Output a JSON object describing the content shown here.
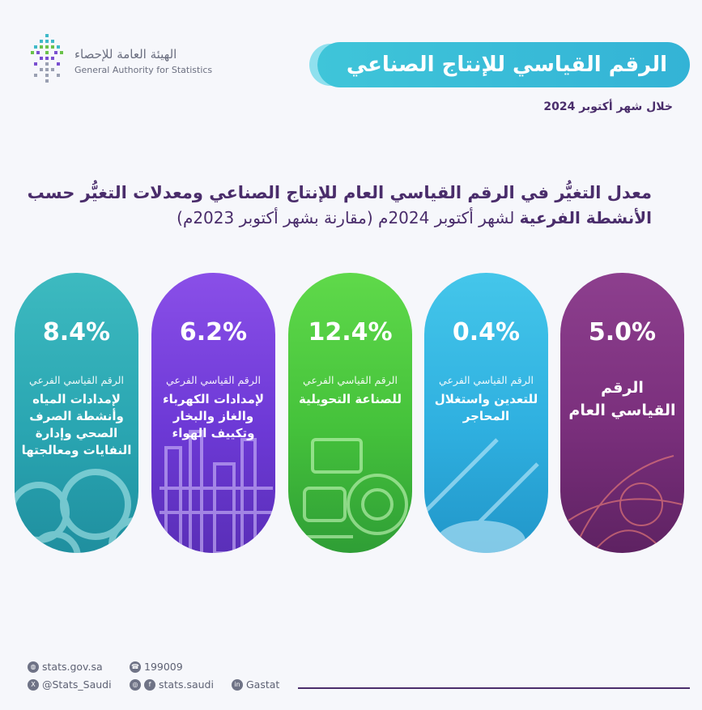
{
  "logo": {
    "arabic_name": "الهيئة العامة للإحصاء",
    "english_name": "General Authority for Statistics"
  },
  "title": "الرقم القياسي للإنتاج الصناعي",
  "period": "خلال شهر أكتوبر 2024",
  "heading": {
    "line1": "معدل التغيُّر في الرقم القياسي العام للإنتاج الصناعي ومعدلات التغيُّر حسب",
    "line2_bold": "الأنشطة الفرعية",
    "line2_rest": "لشهر أكتوبر 2024م (مقارنة بشهر أكتوبر 2023م)"
  },
  "cards": [
    {
      "value": "5.0%",
      "subtitle": "",
      "name": "الرقم القياسي العام",
      "color": "#7a2f7c"
    },
    {
      "value": "0.4%",
      "subtitle": "الرقم القياسي الفرعي",
      "name": "للتعدين واستغلال المحاجر",
      "color": "#2fb0e0"
    },
    {
      "value": "12.4%",
      "subtitle": "الرقم القياسي الفرعي",
      "name": "للصناعة التحويلية",
      "color": "#45c23b"
    },
    {
      "value": "6.2%",
      "subtitle": "الرقم القياسي الفرعي",
      "name": "لإمدادات الكهرباء والغاز والبخار وتكييف الهواء",
      "color": "#6d39d6"
    },
    {
      "value": "8.4%",
      "subtitle": "الرقم القياسي الفرعي",
      "name": "لإمدادات المياه وأنشطة الصرف الصحي وإدارة النفايات ومعالجتها",
      "color": "#2aa6b2"
    }
  ],
  "footer": {
    "website": "stats.gov.sa",
    "phone": "199009",
    "x_handle": "@Stats_Saudi",
    "social": "stats.saudi",
    "linkedin": "Gastat",
    "website_icon": "globe-icon",
    "phone_icon": "phone-icon",
    "x_icon": "x-icon",
    "social_icon": "instagram-facebook-icon",
    "linkedin_icon": "linkedin-icon"
  }
}
